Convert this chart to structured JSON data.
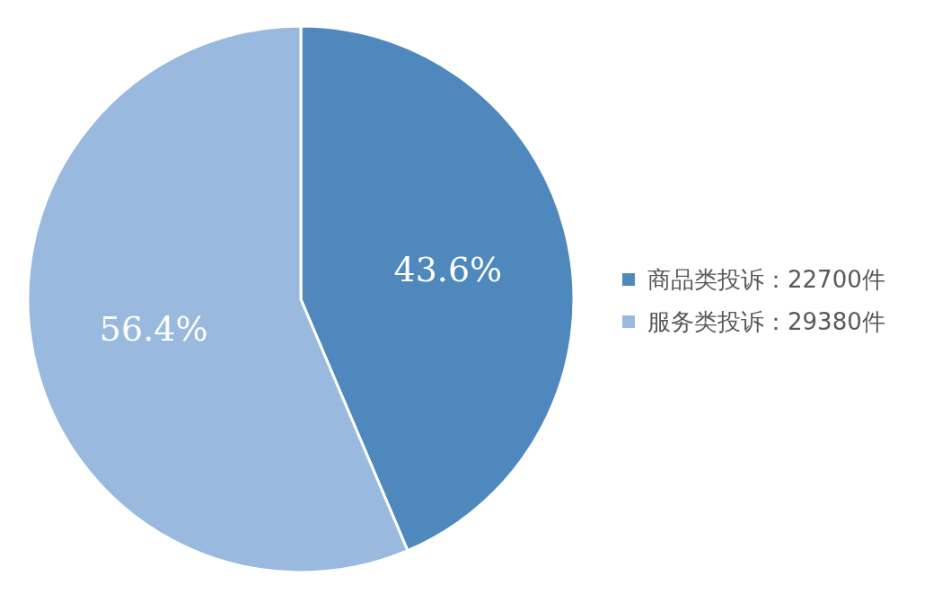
{
  "chart_data": {
    "type": "pie",
    "categories": [
      "商品类投诉：22700件",
      "服务类投诉：29380件"
    ],
    "values": [
      43.6,
      56.4
    ],
    "colors": [
      "#4f88bd",
      "#9ab9de"
    ],
    "value_labels": [
      "43.6%",
      "56.4%"
    ],
    "legend": "right"
  }
}
